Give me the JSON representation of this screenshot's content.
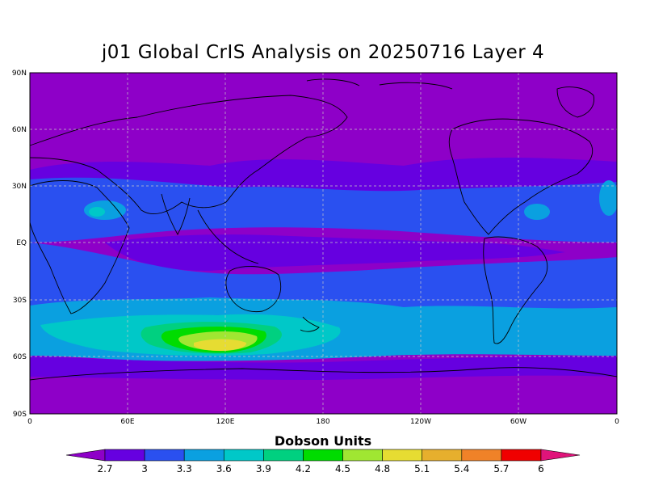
{
  "title": "j01 Global CrIS Analysis on 20250716 Layer 4",
  "map": {
    "lat_labels": [
      "90N",
      "60N",
      "30N",
      "EQ",
      "30S",
      "60S",
      "90S"
    ],
    "lon_labels": [
      "0",
      "60E",
      "120E",
      "180",
      "120W",
      "60W",
      "0"
    ]
  },
  "colorbar": {
    "title": "Dobson Units",
    "levels": [
      "2.7",
      "3",
      "3.3",
      "3.6",
      "3.9",
      "4.2",
      "4.5",
      "4.8",
      "5.1",
      "5.4",
      "5.7",
      "6"
    ],
    "colors": [
      "#8e00c8",
      "#6600e0",
      "#2a50f0",
      "#0aa0e0",
      "#00c8c8",
      "#00d080",
      "#00dc00",
      "#a0e632",
      "#e6dc32",
      "#e6af2d",
      "#f08228",
      "#f00000",
      "#e0147a"
    ]
  },
  "legend_colors": {
    "background_field": "#8e00c8",
    "band_low": "#6600e0",
    "band_mid": "#2a50f0",
    "band_high": "#0aa0e0",
    "band_cyan": "#00c8c8",
    "band_green1": "#00d080",
    "band_green2": "#00dc00",
    "band_lime": "#a0e632",
    "band_yellow": "#e6dc32"
  }
}
